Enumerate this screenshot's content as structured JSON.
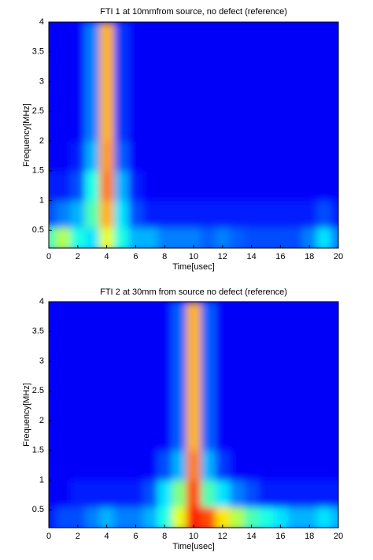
{
  "chart_data": [
    {
      "type": "heatmap",
      "title": "FTI 1 at 10mmfrom source, no defect (reference)",
      "xlabel": "Time[usec]",
      "ylabel": "Frequency[MHz]",
      "colormap": "jet",
      "xlim": [
        0,
        20
      ],
      "xticks": [
        0,
        2,
        4,
        6,
        8,
        10,
        12,
        14,
        16,
        18,
        20
      ],
      "ylim": [
        0.2,
        4
      ],
      "yticks": [
        0.5,
        1,
        1.5,
        2,
        2.5,
        3,
        3.5,
        4
      ],
      "x": [
        0,
        1,
        2,
        3,
        4,
        5,
        6,
        7,
        8,
        9,
        10,
        11,
        12,
        13,
        14,
        15,
        16,
        17,
        18,
        19,
        20
      ],
      "y": [
        0.35,
        0.75,
        1.25,
        1.75,
        2.25,
        2.75,
        3.25,
        3.75
      ],
      "z": [
        [
          0.45,
          0.55,
          0.4,
          0.35,
          0.6,
          0.4,
          0.3,
          0.3,
          0.25,
          0.25,
          0.25,
          0.22,
          0.25,
          0.22,
          0.2,
          0.2,
          0.2,
          0.2,
          0.25,
          0.35,
          0.25
        ],
        [
          0.2,
          0.25,
          0.3,
          0.45,
          0.7,
          0.35,
          0.2,
          0.15,
          0.15,
          0.15,
          0.15,
          0.15,
          0.15,
          0.15,
          0.15,
          0.15,
          0.15,
          0.15,
          0.15,
          0.2,
          0.15
        ],
        [
          0.15,
          0.15,
          0.2,
          0.4,
          0.75,
          0.3,
          0.15,
          0.12,
          0.12,
          0.12,
          0.12,
          0.12,
          0.12,
          0.12,
          0.12,
          0.12,
          0.12,
          0.12,
          0.12,
          0.12,
          0.12
        ],
        [
          0.12,
          0.12,
          0.15,
          0.3,
          0.72,
          0.22,
          0.12,
          0.12,
          0.12,
          0.12,
          0.12,
          0.12,
          0.12,
          0.12,
          0.12,
          0.12,
          0.12,
          0.12,
          0.12,
          0.12,
          0.12
        ],
        [
          0.12,
          0.12,
          0.12,
          0.25,
          0.7,
          0.18,
          0.12,
          0.12,
          0.12,
          0.12,
          0.12,
          0.12,
          0.12,
          0.12,
          0.12,
          0.12,
          0.12,
          0.12,
          0.12,
          0.12,
          0.12
        ],
        [
          0.12,
          0.12,
          0.12,
          0.25,
          0.7,
          0.18,
          0.12,
          0.12,
          0.12,
          0.12,
          0.12,
          0.12,
          0.12,
          0.12,
          0.12,
          0.12,
          0.12,
          0.12,
          0.12,
          0.12,
          0.12
        ],
        [
          0.12,
          0.12,
          0.12,
          0.25,
          0.7,
          0.18,
          0.12,
          0.12,
          0.12,
          0.12,
          0.12,
          0.12,
          0.12,
          0.12,
          0.12,
          0.12,
          0.12,
          0.12,
          0.12,
          0.12,
          0.12
        ],
        [
          0.12,
          0.12,
          0.12,
          0.25,
          0.7,
          0.18,
          0.12,
          0.12,
          0.12,
          0.12,
          0.12,
          0.12,
          0.12,
          0.12,
          0.12,
          0.12,
          0.12,
          0.12,
          0.12,
          0.12,
          0.12
        ]
      ]
    },
    {
      "type": "heatmap",
      "title": "FTI 2 at 30mm from source no defect (reference)",
      "xlabel": "Time[usec]",
      "ylabel": "Frequency[MHz]",
      "colormap": "jet",
      "xlim": [
        0,
        20
      ],
      "xticks": [
        0,
        2,
        4,
        6,
        8,
        10,
        12,
        14,
        16,
        18,
        20
      ],
      "ylim": [
        0.2,
        4
      ],
      "yticks": [
        0.5,
        1,
        1.5,
        2,
        2.5,
        3,
        3.5,
        4
      ],
      "x": [
        0,
        1,
        2,
        3,
        4,
        5,
        6,
        7,
        8,
        9,
        10,
        11,
        12,
        13,
        14,
        15,
        16,
        17,
        18,
        19,
        20
      ],
      "y": [
        0.35,
        0.75,
        1.25,
        1.75,
        2.25,
        2.75,
        3.25,
        3.75
      ],
      "z": [
        [
          0.15,
          0.2,
          0.2,
          0.25,
          0.3,
          0.25,
          0.25,
          0.3,
          0.4,
          0.6,
          0.85,
          0.8,
          0.65,
          0.55,
          0.45,
          0.4,
          0.35,
          0.3,
          0.3,
          0.35,
          0.3
        ],
        [
          0.12,
          0.12,
          0.15,
          0.15,
          0.15,
          0.15,
          0.15,
          0.2,
          0.35,
          0.5,
          0.8,
          0.45,
          0.35,
          0.25,
          0.2,
          0.15,
          0.15,
          0.15,
          0.15,
          0.15,
          0.15
        ],
        [
          0.12,
          0.12,
          0.12,
          0.12,
          0.12,
          0.12,
          0.12,
          0.12,
          0.2,
          0.3,
          0.75,
          0.3,
          0.18,
          0.12,
          0.12,
          0.12,
          0.12,
          0.12,
          0.12,
          0.12,
          0.12
        ],
        [
          0.12,
          0.12,
          0.12,
          0.12,
          0.12,
          0.12,
          0.12,
          0.12,
          0.12,
          0.22,
          0.7,
          0.22,
          0.12,
          0.12,
          0.12,
          0.12,
          0.12,
          0.12,
          0.12,
          0.12,
          0.12
        ],
        [
          0.12,
          0.12,
          0.12,
          0.12,
          0.12,
          0.12,
          0.12,
          0.12,
          0.12,
          0.22,
          0.7,
          0.22,
          0.12,
          0.12,
          0.12,
          0.12,
          0.12,
          0.12,
          0.12,
          0.12,
          0.12
        ],
        [
          0.12,
          0.12,
          0.12,
          0.12,
          0.12,
          0.12,
          0.12,
          0.12,
          0.12,
          0.22,
          0.7,
          0.22,
          0.12,
          0.12,
          0.12,
          0.12,
          0.12,
          0.12,
          0.12,
          0.12,
          0.12
        ],
        [
          0.12,
          0.12,
          0.12,
          0.12,
          0.12,
          0.12,
          0.12,
          0.12,
          0.12,
          0.22,
          0.7,
          0.22,
          0.12,
          0.12,
          0.12,
          0.12,
          0.12,
          0.12,
          0.12,
          0.12,
          0.12
        ],
        [
          0.12,
          0.12,
          0.12,
          0.12,
          0.12,
          0.12,
          0.12,
          0.12,
          0.12,
          0.22,
          0.7,
          0.22,
          0.12,
          0.12,
          0.12,
          0.12,
          0.12,
          0.12,
          0.12,
          0.12,
          0.12
        ]
      ]
    }
  ]
}
